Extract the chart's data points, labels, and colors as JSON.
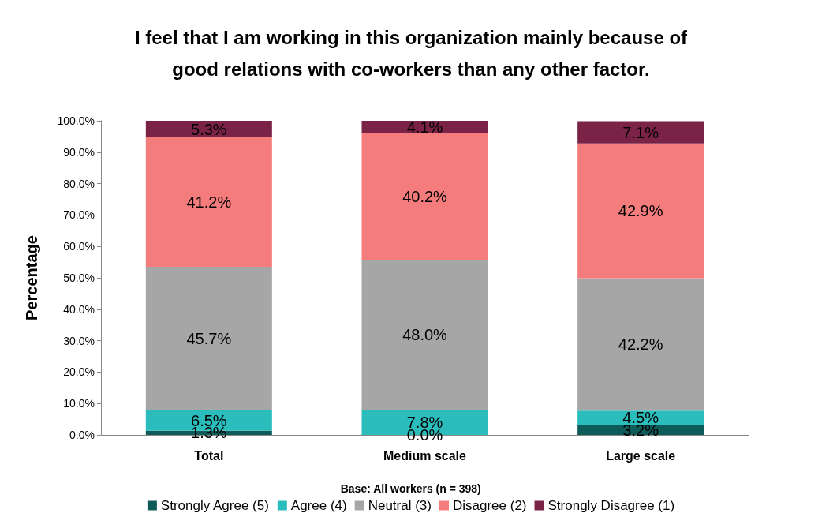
{
  "chart_data": {
    "type": "bar",
    "stacked": true,
    "title": "I feel that I am working in this organization mainly because of\ngood relations with co-workers than any other factor.",
    "ylabel": "Percentage",
    "annotations": [
      "Base: All workers (n = 398)"
    ],
    "categories": [
      "Total",
      "Medium scale",
      "Large scale"
    ],
    "series": [
      {
        "name": "Strongly Agree (5)",
        "color": "#0d5c5a",
        "values": [
          1.3,
          0.0,
          3.2
        ],
        "value_labels": [
          "1.3%",
          "0.0%",
          "3.2%"
        ]
      },
      {
        "name": "Agree (4)",
        "color": "#2bbcbc",
        "values": [
          6.5,
          7.8,
          4.5
        ],
        "value_labels": [
          "6.5%",
          "7.8%",
          "4.5%"
        ]
      },
      {
        "name": "Neutral (3)",
        "color": "#a6a6a6",
        "values": [
          45.7,
          48.0,
          42.2
        ],
        "value_labels": [
          "45.7%",
          "48.0%",
          "42.2%"
        ]
      },
      {
        "name": "Disagree (2)",
        "color": "#f47c7c",
        "values": [
          41.2,
          40.2,
          42.9
        ],
        "value_labels": [
          "41.2%",
          "40.2%",
          "42.9%"
        ]
      },
      {
        "name": "Strongly Disagree (1)",
        "color": "#7b2346",
        "values": [
          5.3,
          4.1,
          7.1
        ],
        "value_labels": [
          "5.3%",
          "4.1%",
          "7.1%"
        ]
      }
    ],
    "ylim": [
      0,
      100
    ],
    "yticks": [
      {
        "value": 0,
        "label": "0.0%"
      },
      {
        "value": 10,
        "label": "10.0%"
      },
      {
        "value": 20,
        "label": "20.0%"
      },
      {
        "value": 30,
        "label": "30.0%"
      },
      {
        "value": 40,
        "label": "40.0%"
      },
      {
        "value": 50,
        "label": "50.0%"
      },
      {
        "value": 60,
        "label": "60.0%"
      },
      {
        "value": 70,
        "label": "70.0%"
      },
      {
        "value": 80,
        "label": "80.0%"
      },
      {
        "value": 90,
        "label": "90.0%"
      },
      {
        "value": 100,
        "label": "100.0%"
      }
    ],
    "grid": false,
    "legend": "bottom"
  }
}
